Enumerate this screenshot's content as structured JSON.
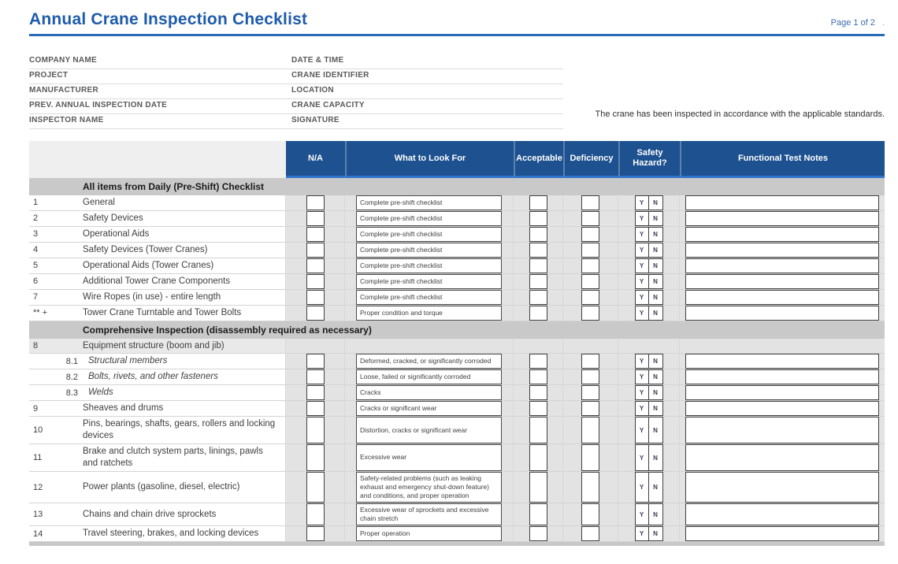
{
  "header": {
    "title": "Annual Crane Inspection Checklist",
    "page_indicator": "Page 1 of 2",
    "trailing_mark": "."
  },
  "form": {
    "rows": [
      {
        "left": "COMPANY NAME",
        "right": "DATE & TIME"
      },
      {
        "left": "PROJECT",
        "right": "CRANE IDENTIFIER"
      },
      {
        "left": "MANUFACTURER",
        "right": "LOCATION"
      },
      {
        "left": "PREV. ANNUAL INSPECTION DATE",
        "right": "CRANE CAPACITY"
      },
      {
        "left": "INSPECTOR NAME",
        "right": "SIGNATURE"
      }
    ]
  },
  "statement": "The crane has been inspected in accordance with the applicable standards.",
  "table": {
    "headers": {
      "na": "N/A",
      "look": "What to Look For",
      "acceptable": "Acceptable",
      "deficiency": "Deficiency",
      "hazard": "Safety Hazard?",
      "notes": "Functional Test Notes"
    },
    "hazard_yes": "Y",
    "hazard_no": "N",
    "sections": [
      {
        "title": "All items from Daily (Pre-Shift) Checklist",
        "rows": [
          {
            "num": "1",
            "name": "General",
            "look": "Complete pre-shift checklist"
          },
          {
            "num": "2",
            "name": "Safety Devices",
            "look": "Complete pre-shift checklist"
          },
          {
            "num": "3",
            "name": "Operational Aids",
            "look": "Complete pre-shift checklist"
          },
          {
            "num": "4",
            "name": "Safety Devices (Tower Cranes)",
            "look": "Complete pre-shift checklist"
          },
          {
            "num": "5",
            "name": "Operational Aids (Tower Cranes)",
            "look": "Complete pre-shift checklist"
          },
          {
            "num": "6",
            "name": "Additional Tower Crane Components",
            "look": "Complete pre-shift checklist"
          },
          {
            "num": "7",
            "name": "Wire Ropes (in use) - entire length",
            "look": "Complete pre-shift checklist"
          },
          {
            "num": "** +",
            "name": "Tower Crane Turntable and Tower Bolts",
            "look": "Proper condition and torque"
          }
        ]
      },
      {
        "title": "Comprehensive Inspection (disassembly required as necessary)",
        "rows": [
          {
            "num": "8",
            "name": "Equipment structure (boom and jib)",
            "subheader": true
          },
          {
            "num": "8.1",
            "name": "Structural members",
            "italic": true,
            "look": "Deformed, cracked, or significantly corroded"
          },
          {
            "num": "8.2",
            "name": "Bolts, rivets, and other fasteners",
            "italic": true,
            "look": "Loose, failed or significantly corroded"
          },
          {
            "num": "8.3",
            "name": "Welds",
            "italic": true,
            "look": "Cracks"
          },
          {
            "num": "9",
            "name": "Sheaves and drums",
            "look": "Cracks or significant wear"
          },
          {
            "num": "10",
            "name": "Pins, bearings, shafts, gears, rollers and locking devices",
            "look": "Distortion, cracks or significant wear"
          },
          {
            "num": "11",
            "name": "Brake and clutch system parts, linings, pawls and ratchets",
            "look": "Excessive wear"
          },
          {
            "num": "12",
            "name": "Power plants (gasoline, diesel, electric)",
            "look": "Safety-related problems (such as leaking exhaust and emergency shut-down feature) and conditions, and proper operation"
          },
          {
            "num": "13",
            "name": "Chains and chain drive sprockets",
            "look": "Excessive wear of sprockets and excessive chain stretch"
          },
          {
            "num": "14",
            "name": "Travel steering, brakes, and locking devices",
            "look": "Proper operation"
          }
        ]
      }
    ]
  },
  "colors": {
    "title_blue": "#1d5bab",
    "rule_blue": "#2b6cb8",
    "header_blue": "#1d518f",
    "header_accent_blue": "#2e74c9",
    "section_band_gray": "#c9c9c9",
    "body_gray": "#e3e3e3",
    "label_gray": "#595959"
  }
}
